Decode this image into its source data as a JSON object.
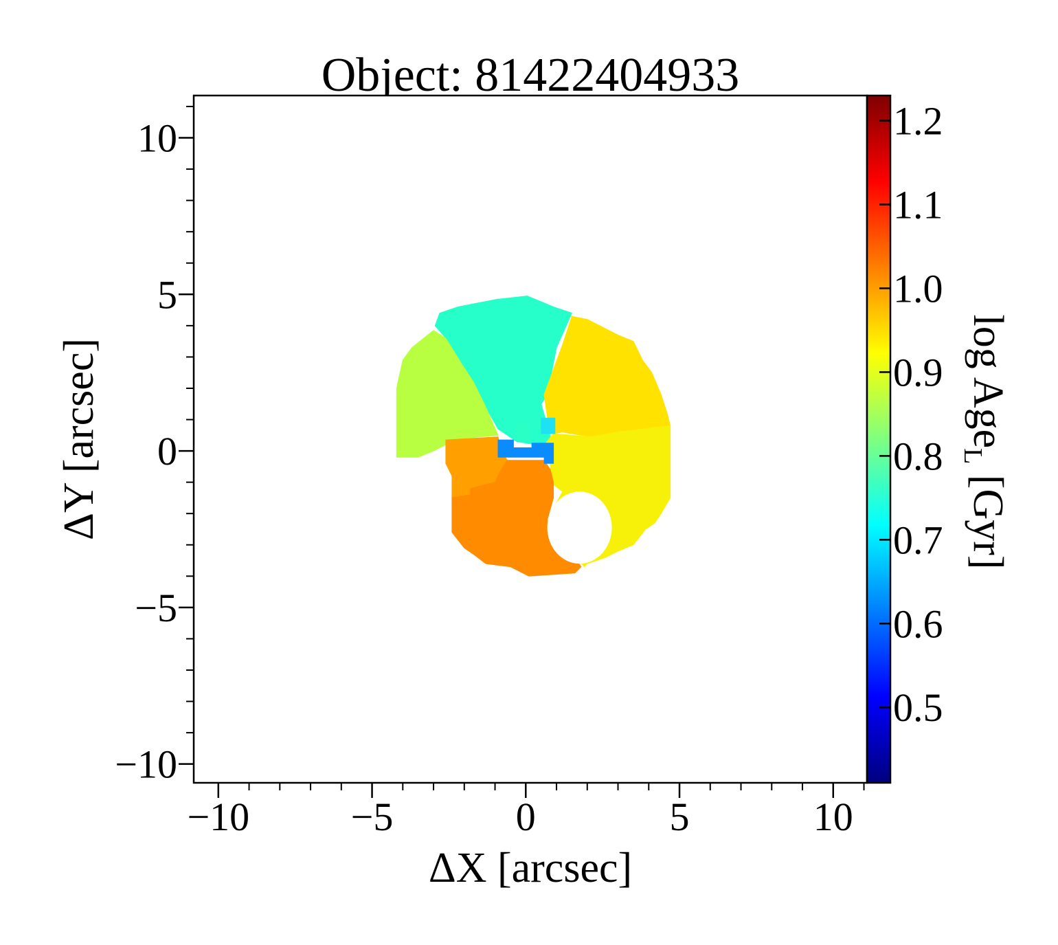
{
  "chart_data": {
    "type": "heatmap",
    "title": "Object: 81422404933",
    "xlabel": "ΔX [arcsec]",
    "ylabel": "ΔY [arcsec]",
    "colorbar_label": "log Age",
    "colorbar_label_sub": "L",
    "colorbar_label_unit": " [Gyr]",
    "xlim": [
      -10.8,
      11.1
    ],
    "ylim": [
      -10.6,
      11.35
    ],
    "xticks": [
      -10,
      -5,
      0,
      5,
      10
    ],
    "yticks": [
      -10,
      -5,
      0,
      5,
      10
    ],
    "xtick_labels": [
      "−10",
      "−5",
      "0",
      "5",
      "10"
    ],
    "ytick_labels": [
      "−10",
      "−5",
      "0",
      "5",
      "10"
    ],
    "colorbar_range": [
      0.41,
      1.23
    ],
    "colorbar_ticks": [
      0.5,
      0.6,
      0.7,
      0.8,
      0.9,
      1.0,
      1.1,
      1.2
    ],
    "colorbar_tick_labels": [
      "0.5",
      "0.6",
      "0.7",
      "0.8",
      "0.9",
      "1.0",
      "1.1",
      "1.2"
    ],
    "colormap": "jet",
    "colormap_stops": [
      "#00007f",
      "#0000ff",
      "#007fff",
      "#00ffff",
      "#7fff7f",
      "#ffff00",
      "#ff7f00",
      "#ff0000",
      "#7f0000"
    ],
    "regions": [
      {
        "name": "north-cyan-green",
        "value": 0.77,
        "color": "#27ffca",
        "polygon": [
          [
            -2.8,
            4.4
          ],
          [
            -2.2,
            4.6
          ],
          [
            -0.9,
            4.85
          ],
          [
            -0.85,
            4.85
          ],
          [
            0.05,
            4.95
          ],
          [
            0.9,
            4.6
          ],
          [
            1.5,
            4.4
          ],
          [
            1.0,
            3.3
          ],
          [
            0.7,
            1.8
          ],
          [
            0.5,
            1.5
          ],
          [
            0.7,
            0.8
          ],
          [
            0.9,
            0.1
          ],
          [
            -0.3,
            0.3
          ],
          [
            -0.9,
            0.7
          ],
          [
            -1.3,
            1.4
          ],
          [
            -1.7,
            2.2
          ],
          [
            -2.1,
            2.8
          ],
          [
            -2.6,
            3.6
          ],
          [
            -2.95,
            4.0
          ]
        ]
      },
      {
        "name": "west-yellow-green",
        "value": 0.88,
        "color": "#b7ff40",
        "polygon": [
          [
            -4.2,
            2.0
          ],
          [
            -4.0,
            2.9
          ],
          [
            -3.7,
            3.3
          ],
          [
            -3.0,
            3.85
          ],
          [
            -2.6,
            3.6
          ],
          [
            -2.1,
            2.8
          ],
          [
            -1.7,
            2.2
          ],
          [
            -1.3,
            1.4
          ],
          [
            -0.9,
            0.5
          ],
          [
            -2.6,
            0.35
          ],
          [
            -2.6,
            0.2
          ],
          [
            -3.0,
            0.0
          ],
          [
            -3.5,
            -0.2
          ],
          [
            -4.2,
            -0.2
          ]
        ]
      },
      {
        "name": "east-upper-gold",
        "value": 0.96,
        "color": "#ffe200",
        "polygon": [
          [
            1.5,
            4.3
          ],
          [
            2.0,
            4.2
          ],
          [
            2.5,
            3.95
          ],
          [
            3.0,
            3.7
          ],
          [
            3.5,
            3.5
          ],
          [
            3.8,
            2.9
          ],
          [
            4.1,
            2.5
          ],
          [
            4.4,
            1.8
          ],
          [
            4.6,
            1.2
          ],
          [
            4.7,
            0.8
          ],
          [
            3.8,
            0.7
          ],
          [
            3.0,
            0.6
          ],
          [
            2.1,
            0.45
          ],
          [
            1.2,
            0.6
          ],
          [
            0.9,
            0.55
          ],
          [
            0.7,
            1.1
          ],
          [
            0.6,
            1.8
          ],
          [
            0.9,
            2.6
          ],
          [
            1.2,
            3.4
          ]
        ]
      },
      {
        "name": "east-lower-yellow",
        "value": 0.94,
        "color": "#f7f10a",
        "polygon": [
          [
            0.9,
            0.55
          ],
          [
            2.1,
            0.45
          ],
          [
            3.0,
            0.6
          ],
          [
            3.8,
            0.7
          ],
          [
            4.7,
            0.8
          ],
          [
            4.7,
            -1.5
          ],
          [
            4.4,
            -2.0
          ],
          [
            4.2,
            -2.3
          ],
          [
            3.9,
            -2.5
          ],
          [
            3.5,
            -3.0
          ],
          [
            3.0,
            -3.2
          ],
          [
            2.6,
            -3.4
          ],
          [
            2.0,
            -3.6
          ],
          [
            1.9,
            -3.7
          ],
          [
            1.3,
            -2.9
          ],
          [
            0.8,
            -2.7
          ],
          [
            0.8,
            -2.0
          ],
          [
            1.2,
            -1.3
          ],
          [
            0.8,
            -1.0
          ],
          [
            0.8,
            -0.3
          ],
          [
            0.6,
            0.2
          ]
        ]
      },
      {
        "name": "southwest-orange",
        "value": 1.02,
        "color": "#ffa000",
        "polygon": [
          [
            -2.6,
            0.35
          ],
          [
            -0.9,
            0.45
          ],
          [
            -0.8,
            0.0
          ],
          [
            -0.6,
            -0.3
          ],
          [
            -0.8,
            -0.6
          ],
          [
            -1.0,
            -1.0
          ],
          [
            -1.8,
            -1.2
          ],
          [
            -1.8,
            -1.4
          ],
          [
            -2.4,
            -1.5
          ],
          [
            -2.4,
            -0.8
          ],
          [
            -2.6,
            -0.4
          ],
          [
            -2.6,
            0.0
          ]
        ]
      },
      {
        "name": "south-dark-orange",
        "value": 1.05,
        "color": "#ff8c00",
        "polygon": [
          [
            -2.4,
            -1.5
          ],
          [
            -1.8,
            -1.4
          ],
          [
            -1.8,
            -1.2
          ],
          [
            -1.0,
            -1.0
          ],
          [
            -0.8,
            -0.6
          ],
          [
            -0.6,
            -0.3
          ],
          [
            0.6,
            -0.3
          ],
          [
            0.8,
            -0.6
          ],
          [
            0.9,
            -1.0
          ],
          [
            0.9,
            -1.5
          ],
          [
            0.7,
            -2.2
          ],
          [
            0.8,
            -2.7
          ],
          [
            1.3,
            -3.0
          ],
          [
            1.8,
            -3.7
          ],
          [
            1.6,
            -3.9
          ],
          [
            0.1,
            -4.0
          ],
          [
            -0.5,
            -3.7
          ],
          [
            -1.3,
            -3.6
          ],
          [
            -1.7,
            -3.3
          ],
          [
            -2.0,
            -3.1
          ],
          [
            -2.4,
            -2.6
          ]
        ]
      },
      {
        "name": "core-blue",
        "value": 0.62,
        "color": "#0a8cff",
        "polygon": [
          [
            -0.9,
            0.35
          ],
          [
            -0.4,
            0.35
          ],
          [
            -0.4,
            0.1
          ],
          [
            0.2,
            0.1
          ],
          [
            0.2,
            0.25
          ],
          [
            0.9,
            0.25
          ],
          [
            0.9,
            -0.4
          ],
          [
            0.6,
            -0.4
          ],
          [
            0.6,
            -0.2
          ],
          [
            -0.9,
            -0.2
          ]
        ]
      },
      {
        "name": "core-cyan",
        "value": 0.7,
        "color": "#1ee2f4",
        "polygon": [
          [
            0.5,
            1.05
          ],
          [
            0.95,
            1.05
          ],
          [
            0.95,
            0.55
          ],
          [
            0.5,
            0.55
          ]
        ]
      },
      {
        "name": "core-teal",
        "value": 0.76,
        "color": "#2affc5",
        "polygon": [
          [
            -0.35,
            0.9
          ],
          [
            0.1,
            0.9
          ],
          [
            0.1,
            0.35
          ],
          [
            -0.35,
            0.35
          ]
        ]
      }
    ],
    "hole": {
      "cx": 1.75,
      "cy": -2.45,
      "rx": 1.05,
      "ry": 1.15
    }
  }
}
